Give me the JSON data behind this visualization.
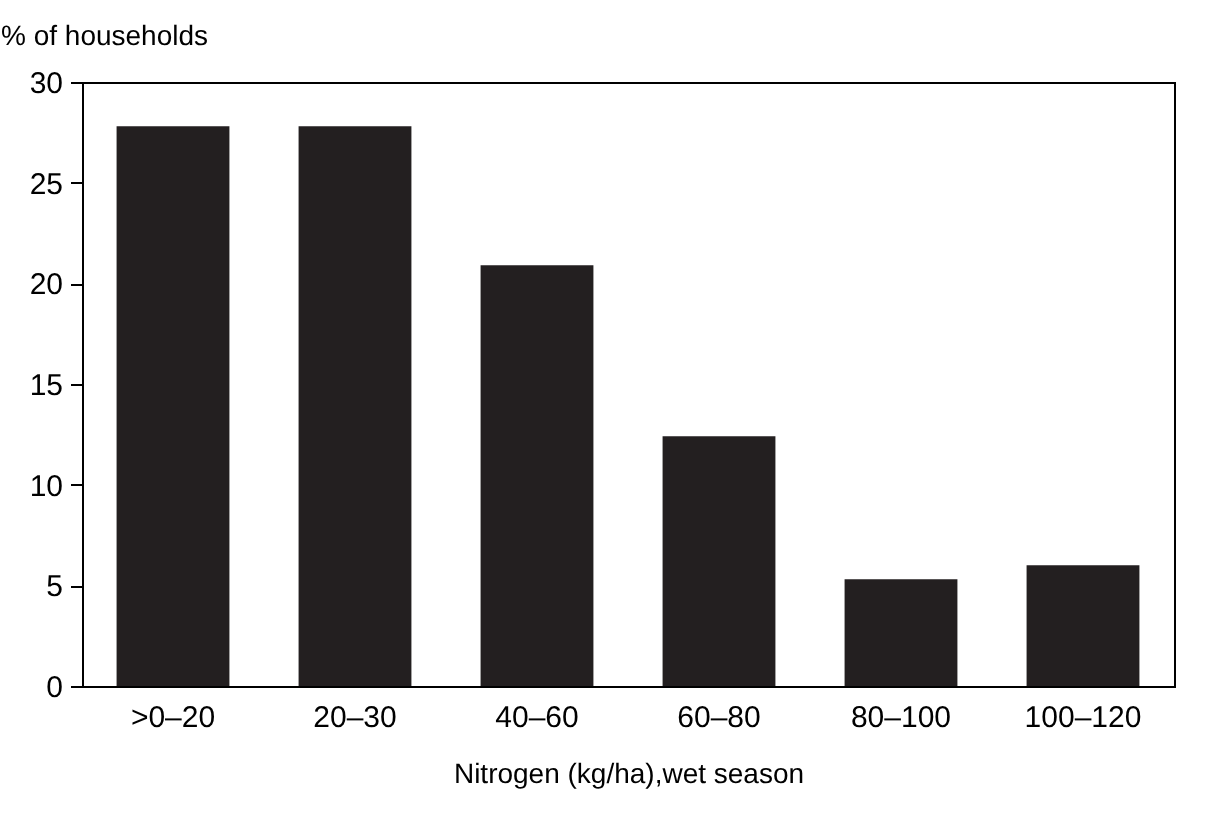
{
  "chart_data": {
    "type": "bar",
    "ylabel": "% of households",
    "xlabel": "Nitrogen (kg/ha),wet season",
    "categories": [
      ">0–20",
      "20–30",
      "40–60",
      "60–80",
      "80–100",
      "100–120"
    ],
    "values": [
      27.8,
      27.8,
      20.9,
      12.4,
      5.3,
      6.0
    ],
    "color": "#231f20",
    "ylim": [
      0,
      30
    ],
    "yticks": [
      0,
      5,
      10,
      15,
      20,
      25,
      30
    ],
    "grid": false
  }
}
